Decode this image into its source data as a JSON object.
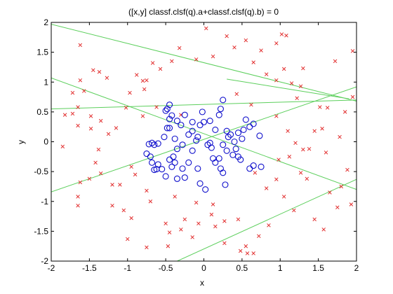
{
  "chart_data": {
    "type": "scatter",
    "title": "([x,y] classf.clsf(q).a+classf.clsf(q).b) = 0",
    "xlabel": "x",
    "ylabel": "y",
    "xlim": [
      -2,
      2
    ],
    "ylim": [
      -2,
      2
    ],
    "xticks": [
      "-2",
      "-1.5",
      "-1",
      "-0.5",
      "0",
      "0.5",
      "1",
      "1.5",
      "2"
    ],
    "yticks": [
      "-2",
      "-1.5",
      "-1",
      "-0.5",
      "0",
      "0.5",
      "1",
      "1.5",
      "2"
    ],
    "grid": false,
    "colors": {
      "crosses": "#e23030",
      "circles": "#1010cc",
      "lines": "#5ccf5c"
    },
    "series": [
      {
        "marker": "x",
        "color": "#e23030",
        "points": [
          [
            -1.62,
            1.62
          ],
          [
            -1.45,
            1.2
          ],
          [
            -1.37,
            1.17
          ],
          [
            -1.27,
            1.07
          ],
          [
            -1.62,
            1.03
          ],
          [
            -1.72,
            0.82
          ],
          [
            -1.65,
            0.58
          ],
          [
            -1.57,
            0.85
          ],
          [
            -1.72,
            0.47
          ],
          [
            -1.82,
            0.45
          ],
          [
            -1.65,
            0.27
          ],
          [
            -1.48,
            0.43
          ],
          [
            -1.48,
            0.22
          ],
          [
            -1.35,
            0.35
          ],
          [
            -1.25,
            0.13
          ],
          [
            -1.15,
            0.23
          ],
          [
            -1.02,
            0.57
          ],
          [
            -0.8,
            0.43
          ],
          [
            -0.78,
            0.88
          ],
          [
            -0.97,
            0.82
          ],
          [
            -0.88,
            1.12
          ],
          [
            -0.75,
            1.03
          ],
          [
            -0.8,
            1.02
          ],
          [
            -0.67,
            1.32
          ],
          [
            -0.57,
            1.22
          ],
          [
            -0.42,
            1.35
          ],
          [
            -0.32,
            1.57
          ],
          [
            -0.1,
            1.38
          ],
          [
            0.03,
            1.9
          ],
          [
            0.12,
            1.43
          ],
          [
            0.3,
            1.77
          ],
          [
            0.4,
            1.58
          ],
          [
            0.55,
            1.7
          ],
          [
            0.65,
            1.33
          ],
          [
            0.75,
            1.53
          ],
          [
            0.95,
            1.65
          ],
          [
            1.02,
            1.8
          ],
          [
            1.08,
            1.78
          ],
          [
            1.05,
            1.22
          ],
          [
            0.82,
            1.13
          ],
          [
            0.95,
            1.03
          ],
          [
            1.15,
            0.98
          ],
          [
            1.27,
            0.93
          ],
          [
            1.3,
            1.23
          ],
          [
            1.22,
            0.73
          ],
          [
            1.52,
            0.58
          ],
          [
            1.62,
            0.57
          ],
          [
            1.85,
            0.5
          ],
          [
            1.95,
            0.75
          ],
          [
            1.72,
            1.35
          ],
          [
            1.95,
            1.52
          ],
          [
            1.45,
            0.18
          ],
          [
            1.55,
            0.22
          ],
          [
            1.78,
            0.08
          ],
          [
            1.2,
            -0.02
          ],
          [
            1.3,
            -0.13
          ],
          [
            1.38,
            -0.12
          ],
          [
            1.27,
            -0.52
          ],
          [
            1.6,
            -0.18
          ],
          [
            1.88,
            -0.47
          ],
          [
            1.65,
            -0.85
          ],
          [
            1.8,
            -0.75
          ],
          [
            1.93,
            -1.05
          ],
          [
            1.75,
            -1.1
          ],
          [
            1.45,
            -1.3
          ],
          [
            1.57,
            -1.47
          ],
          [
            1.18,
            -1.15
          ],
          [
            1.05,
            -0.92
          ],
          [
            0.95,
            -0.63
          ],
          [
            0.82,
            -0.78
          ],
          [
            0.67,
            -0.52
          ],
          [
            0.85,
            -1.4
          ],
          [
            0.72,
            -1.58
          ],
          [
            0.55,
            -1.75
          ],
          [
            0.57,
            -1.87
          ],
          [
            0.65,
            -1.87
          ],
          [
            0.45,
            -1.3
          ],
          [
            0.27,
            -1.33
          ],
          [
            0.15,
            -1.42
          ],
          [
            0.1,
            -1.22
          ],
          [
            0.12,
            -1.05
          ],
          [
            -0.1,
            -1.02
          ],
          [
            -0.07,
            -1.37
          ],
          [
            -0.15,
            -1.6
          ],
          [
            -0.3,
            -1.47
          ],
          [
            -0.5,
            -1.37
          ],
          [
            -0.7,
            -1.0
          ],
          [
            -0.75,
            -0.82
          ],
          [
            -0.9,
            -0.55
          ],
          [
            -0.95,
            -0.42
          ],
          [
            -1.1,
            -0.72
          ],
          [
            -1.2,
            -0.72
          ],
          [
            -1.35,
            -0.53
          ],
          [
            -1.5,
            -0.62
          ],
          [
            -1.62,
            -0.68
          ],
          [
            -1.65,
            -0.92
          ],
          [
            -1.65,
            -1.07
          ],
          [
            -1.2,
            -1.07
          ],
          [
            -1.05,
            -1.15
          ],
          [
            -0.95,
            -1.28
          ],
          [
            -1.0,
            -1.63
          ],
          [
            -0.75,
            -1.77
          ],
          [
            -0.47,
            -1.75
          ],
          [
            -0.45,
            -1.52
          ],
          [
            -0.25,
            -1.3
          ],
          [
            -0.38,
            -0.92
          ],
          [
            -1.42,
            -0.35
          ],
          [
            -1.38,
            -0.13
          ],
          [
            -1.85,
            -0.08
          ],
          [
            -0.62,
            0.58
          ],
          [
            -0.3,
            0.45
          ],
          [
            0.43,
            0.8
          ],
          [
            0.95,
            0.43
          ],
          [
            1.1,
            0.18
          ],
          [
            1.12,
            -0.25
          ],
          [
            0.27,
            -1.7
          ],
          [
            0.48,
            -1.83
          ],
          [
            0.98,
            -0.3
          ],
          [
            1.35,
            -0.62
          ],
          [
            0.62,
            0.62
          ]
        ]
      },
      {
        "marker": "o",
        "color": "#1010cc",
        "points": [
          [
            -0.5,
            0.52
          ],
          [
            -0.48,
            0.55
          ],
          [
            -0.45,
            0.62
          ],
          [
            -0.42,
            0.44
          ],
          [
            -0.35,
            0.35
          ],
          [
            -0.25,
            0.45
          ],
          [
            -0.3,
            0.28
          ],
          [
            -0.48,
            0.23
          ],
          [
            -0.52,
            0.08
          ],
          [
            -0.45,
            0.23
          ],
          [
            -0.38,
            0.05
          ],
          [
            -0.6,
            -0.03
          ],
          [
            -0.65,
            -0.05
          ],
          [
            -0.68,
            -0.02
          ],
          [
            -0.72,
            -0.04
          ],
          [
            -0.75,
            -0.2
          ],
          [
            -0.7,
            -0.25
          ],
          [
            -0.68,
            -0.35
          ],
          [
            -0.6,
            -0.38
          ],
          [
            -0.55,
            -0.46
          ],
          [
            -0.62,
            -0.46
          ],
          [
            -0.65,
            -0.47
          ],
          [
            -0.5,
            -0.58
          ],
          [
            -0.45,
            -0.3
          ],
          [
            -0.4,
            -0.25
          ],
          [
            -0.35,
            -0.12
          ],
          [
            -0.28,
            -0.05
          ],
          [
            -0.2,
            0.12
          ],
          [
            -0.15,
            0.18
          ],
          [
            -0.08,
            0.08
          ],
          [
            -0.05,
            0.28
          ],
          [
            0.0,
            0.33
          ],
          [
            -0.1,
            0.02
          ],
          [
            -0.15,
            -0.15
          ],
          [
            -0.2,
            -0.35
          ],
          [
            -0.28,
            -0.45
          ],
          [
            -0.35,
            -0.62
          ],
          [
            -0.42,
            -0.42
          ],
          [
            -0.25,
            -0.6
          ],
          [
            -0.05,
            -0.7
          ],
          [
            -0.08,
            -0.45
          ],
          [
            0.05,
            -0.05
          ],
          [
            0.1,
            -0.1
          ],
          [
            0.08,
            -0.02
          ],
          [
            0.12,
            -0.28
          ],
          [
            0.15,
            -0.35
          ],
          [
            0.2,
            -0.28
          ],
          [
            0.22,
            -0.45
          ],
          [
            0.25,
            -0.52
          ],
          [
            0.28,
            -0.72
          ],
          [
            0.02,
            -0.8
          ],
          [
            0.25,
            -0.05
          ],
          [
            0.3,
            -0.15
          ],
          [
            0.38,
            -0.22
          ],
          [
            0.45,
            -0.25
          ],
          [
            0.48,
            -0.3
          ],
          [
            0.42,
            -0.12
          ],
          [
            0.5,
            0.05
          ],
          [
            0.52,
            0.2
          ],
          [
            0.6,
            0.25
          ],
          [
            0.65,
            0.3
          ],
          [
            0.55,
            0.37
          ],
          [
            0.45,
            0.15
          ],
          [
            0.35,
            0.12
          ],
          [
            0.3,
            0.18
          ],
          [
            0.32,
            0.08
          ],
          [
            0.4,
            0.0
          ],
          [
            0.6,
            -0.45
          ],
          [
            0.65,
            -0.4
          ],
          [
            0.75,
            -0.42
          ],
          [
            0.73,
            0.1
          ],
          [
            0.2,
            0.45
          ],
          [
            0.25,
            0.7
          ],
          [
            0.22,
            0.55
          ],
          [
            0.15,
            0.2
          ],
          [
            -0.02,
            0.5
          ],
          [
            -0.15,
            0.33
          ],
          [
            -0.45,
            0.38
          ],
          [
            -0.38,
            -0.35
          ],
          [
            0.08,
            0.35
          ]
        ]
      }
    ],
    "lines": [
      {
        "x1": -2,
        "y1": 1.97,
        "x2": 2,
        "y2": 0.68
      },
      {
        "x1": -2,
        "y1": 1.07,
        "x2": 2,
        "y2": -0.8
      },
      {
        "x1": -2,
        "y1": -0.84,
        "x2": 2,
        "y2": 0.92
      },
      {
        "x1": -2,
        "y1": 0.55,
        "x2": 2,
        "y2": 0.7
      },
      {
        "x1": -0.35,
        "y1": -2,
        "x2": 2,
        "y2": -0.63
      },
      {
        "x1": 0.3,
        "y1": 1.05,
        "x2": 1.9,
        "y2": 0.72
      }
    ]
  }
}
